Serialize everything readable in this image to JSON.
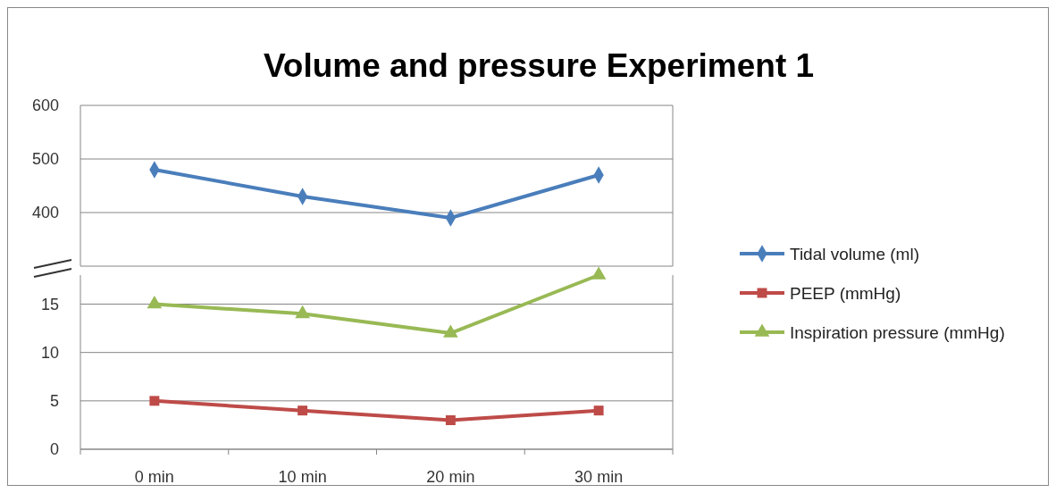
{
  "chart_data": [
    {
      "type": "line",
      "title": "Volume and pressure Experiment 1",
      "categories": [
        null,
        null,
        null,
        null
      ],
      "series": [
        {
          "name": "Tidal volume (ml)",
          "color": "#4a7ebb",
          "values": [
            480,
            430,
            390,
            470
          ],
          "marker": "diamond"
        }
      ],
      "ylim": [
        300,
        600
      ],
      "yticks": [
        {
          "value": 300,
          "label": null
        },
        400,
        500,
        600
      ],
      "grid": "y",
      "legend": "right",
      "tick_labels": "y"
    },
    {
      "type": "line",
      "categories": [
        "0 min",
        "10 min",
        "20 min",
        "30 min"
      ],
      "series": [
        {
          "name": "PEEP (mmHg)",
          "color": "#be4b48",
          "values": [
            5,
            4,
            3,
            4
          ],
          "marker": "square"
        },
        {
          "name": "Inspiration pressure (mmHg)",
          "color": "#98b954",
          "values": [
            15,
            14,
            12,
            18
          ],
          "marker": "triangle"
        }
      ],
      "ylim": [
        0,
        18
      ],
      "yticks": [
        0,
        5,
        10,
        15
      ],
      "grid": "y",
      "legend": "right"
    }
  ]
}
